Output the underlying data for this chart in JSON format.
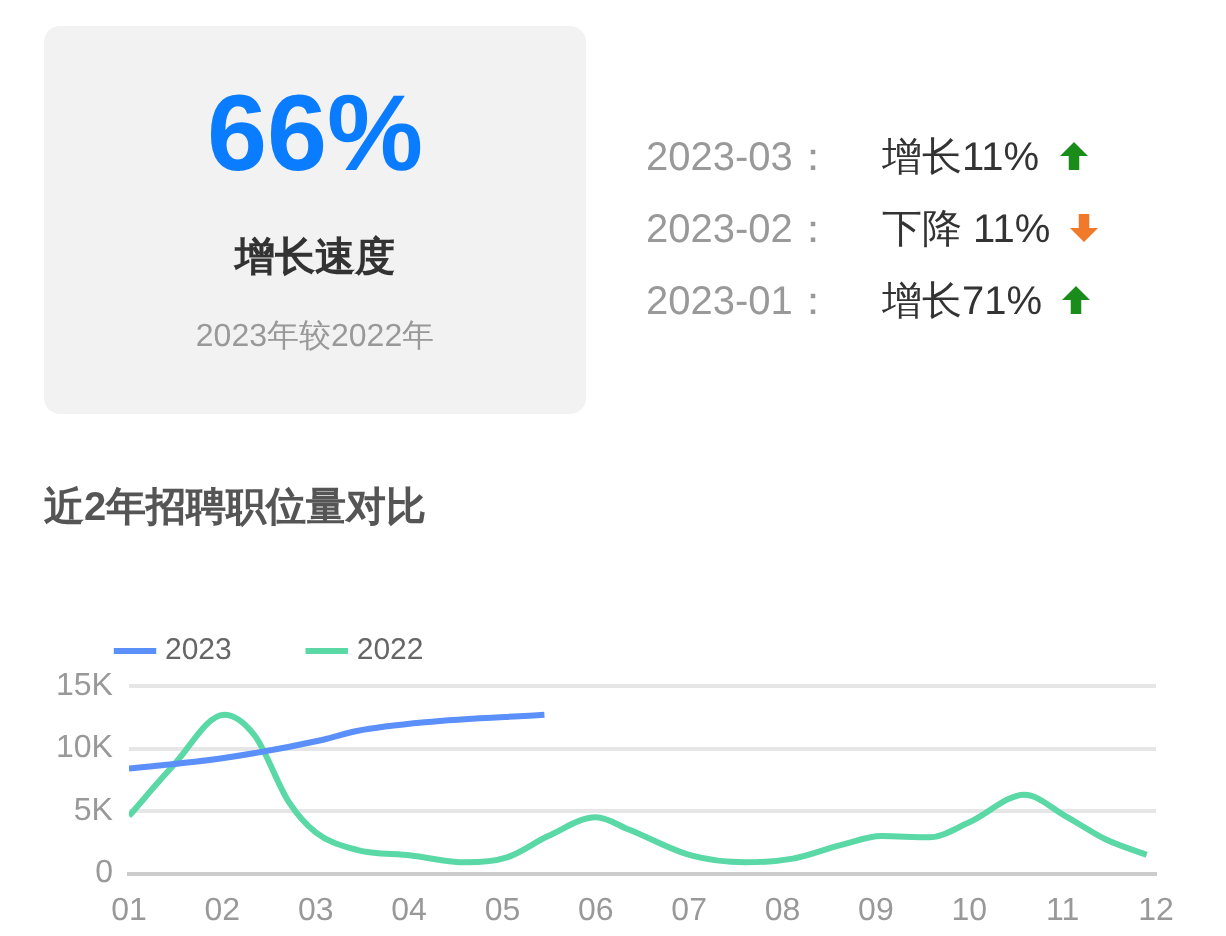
{
  "chart_data": [
    {
      "type": "other",
      "title": "66%",
      "subtitle": "增长速度",
      "annotations": [
        "2023年较2022年",
        "2023-03：",
        "增长11%",
        "2023-02：",
        "下降 11%",
        "2023-01：",
        "增长71%"
      ]
    },
    {
      "type": "line",
      "title": "近2年招聘职位量对比",
      "xlim": [
        1,
        12
      ],
      "xticks": [
        {
          "value": 1,
          "label": "01"
        },
        {
          "value": 2,
          "label": "02"
        },
        {
          "value": 3,
          "label": "03"
        },
        {
          "value": 4,
          "label": "04"
        },
        {
          "value": 5,
          "label": "05"
        },
        {
          "value": 6,
          "label": "06"
        },
        {
          "value": 7,
          "label": "07"
        },
        {
          "value": 8,
          "label": "08"
        },
        {
          "value": 9,
          "label": "09"
        },
        {
          "value": 10,
          "label": "10"
        },
        {
          "value": 11,
          "label": "11"
        },
        {
          "value": 12,
          "label": "12"
        }
      ],
      "ylim": [
        0,
        15000
      ],
      "yticks": [
        0,
        {
          "value": 5000,
          "label": "5K"
        },
        {
          "value": 10000,
          "label": "10K"
        },
        {
          "value": 15000,
          "label": "15K"
        }
      ],
      "grid": "y",
      "legend": "top left",
      "marker": "none",
      "line_style": "solid",
      "series": [
        {
          "name": "2023",
          "color": "#5b8ff9",
          "x": [
            1,
            1.98,
            3.08,
            3.44,
            4.17,
            5.45
          ],
          "values": [
            8400,
            9200,
            10700,
            11400,
            12100,
            12700
          ]
        },
        {
          "name": "2022",
          "color": "#5ad8a6",
          "x": [
            1,
            1.47,
            2.02,
            2.35,
            2.71,
            3,
            3.44,
            4.02,
            4.61,
            5.05,
            5.49,
            6,
            6.36,
            7.02,
            7.6,
            8.11,
            8.63,
            9.06,
            9.57,
            10,
            10.59,
            11.03,
            11.47,
            11.9
          ],
          "values": [
            4600,
            8600,
            12700,
            11000,
            5750,
            3300,
            1900,
            1450,
            900,
            1300,
            3000,
            4500,
            3500,
            1450,
            900,
            1200,
            2300,
            3000,
            2900,
            4100,
            6300,
            4600,
            2700,
            1500
          ]
        }
      ]
    }
  ]
}
